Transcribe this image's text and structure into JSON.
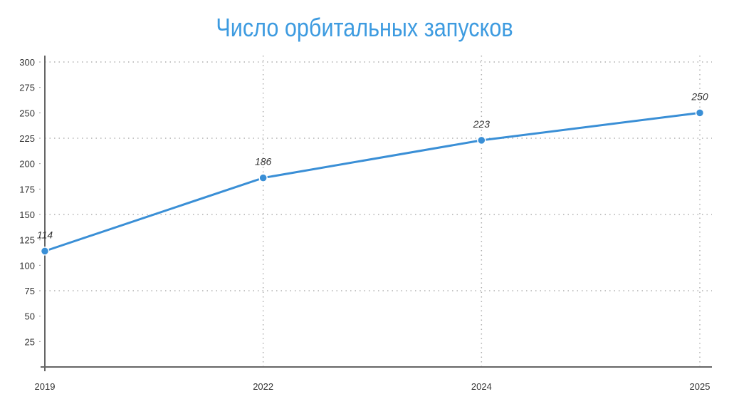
{
  "chart_data": {
    "type": "line",
    "title": "Число орбитальных запусков",
    "xlabel": "",
    "ylabel": "",
    "categories": [
      "2019",
      "2022",
      "2024",
      "2025"
    ],
    "series": [
      {
        "name": "Число орбитальных запусков",
        "values": [
          114,
          186,
          223,
          250
        ]
      }
    ],
    "data_labels": [
      "114",
      "186",
      "223",
      "250"
    ],
    "ylim": [
      0,
      300
    ],
    "yticks": [
      25,
      50,
      75,
      100,
      125,
      150,
      175,
      200,
      225,
      250,
      275,
      300
    ],
    "ytick_labels": [
      "25",
      "50",
      "75",
      "100",
      "125",
      "150",
      "175",
      "200",
      "225",
      "250",
      "275",
      "300"
    ],
    "horizontal_grid": [
      75,
      150,
      225,
      300
    ],
    "grid": true,
    "legend": "none",
    "colors": {
      "line": "#3a8fd6",
      "title": "#3d9be0",
      "grid": "#b0b0b0",
      "axis": "#666666"
    }
  }
}
